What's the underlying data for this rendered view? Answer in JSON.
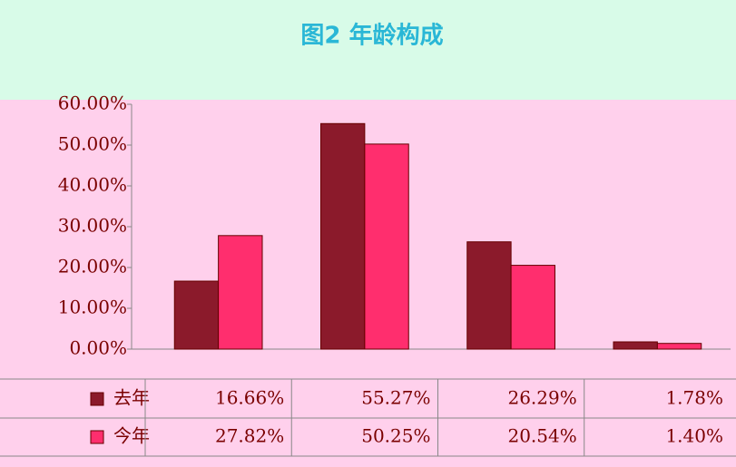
{
  "chart_data": {
    "type": "bar",
    "title": "图2 年龄构成",
    "categories": [
      null,
      null,
      null,
      null
    ],
    "series": [
      {
        "name": "去年",
        "color": "#8b1a2b",
        "values": [
          16.66,
          55.27,
          26.29,
          1.78
        ],
        "value_labels": [
          "16.66%",
          "55.27%",
          "26.29%",
          "1.78%"
        ]
      },
      {
        "name": "今年",
        "color": "#ff2e6e",
        "values": [
          27.82,
          50.25,
          20.54,
          1.4
        ],
        "value_labels": [
          "27.82%",
          "50.25%",
          "20.54%",
          "1.40%"
        ]
      }
    ],
    "ylim": [
      0,
      60
    ],
    "yticks": [
      {
        "value": 0,
        "label": "0.00%"
      },
      {
        "value": 10,
        "label": "10.00%"
      },
      {
        "value": 20,
        "label": "20.00%"
      },
      {
        "value": 30,
        "label": "30.00%"
      },
      {
        "value": 40,
        "label": "40.00%"
      },
      {
        "value": 50,
        "label": "50.00%"
      },
      {
        "value": 60,
        "label": "60.00%"
      }
    ],
    "grid": false
  }
}
